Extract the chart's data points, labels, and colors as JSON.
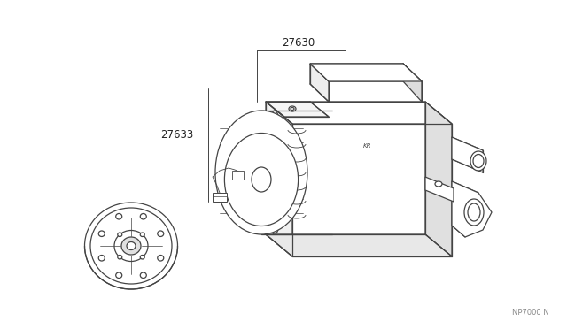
{
  "bg_color": "#ffffff",
  "line_color": "#444444",
  "text_color": "#222222",
  "label_27630": "27630",
  "label_27633": "27633",
  "watermark": "NP7000 N",
  "fig_width": 6.4,
  "fig_height": 3.72,
  "dpi": 100
}
